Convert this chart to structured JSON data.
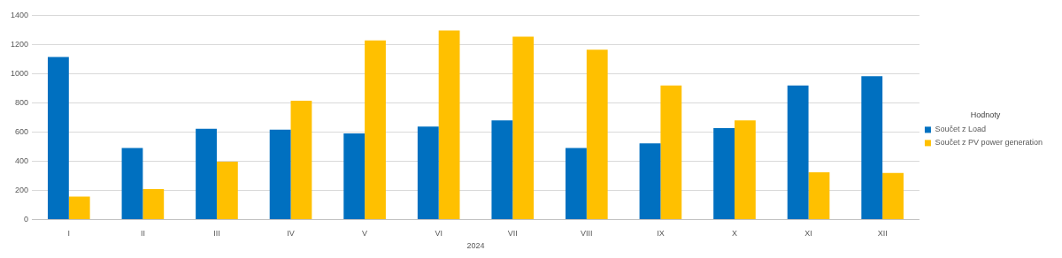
{
  "chart_data": {
    "type": "bar",
    "categories": [
      "I",
      "II",
      "III",
      "IV",
      "V",
      "VI",
      "VII",
      "VIII",
      "IX",
      "X",
      "XI",
      "XII"
    ],
    "xlabel": "2024",
    "legend_title": "Hodnoty",
    "legend": "right",
    "grid": "y",
    "ylim": [
      0,
      1400
    ],
    "yticks": [
      0,
      200,
      400,
      600,
      800,
      1000,
      1200,
      1400
    ],
    "series": [
      {
        "name": "Součet z Load",
        "color": "#0070c0",
        "values": [
          1115,
          491,
          622,
          616,
          590,
          637,
          679,
          491,
          522,
          627,
          919,
          982
        ]
      },
      {
        "name": "Součet z PV power generation",
        "color": "#ffc000",
        "values": [
          157,
          209,
          397,
          815,
          1228,
          1296,
          1254,
          1165,
          919,
          679,
          324,
          319
        ]
      }
    ]
  }
}
